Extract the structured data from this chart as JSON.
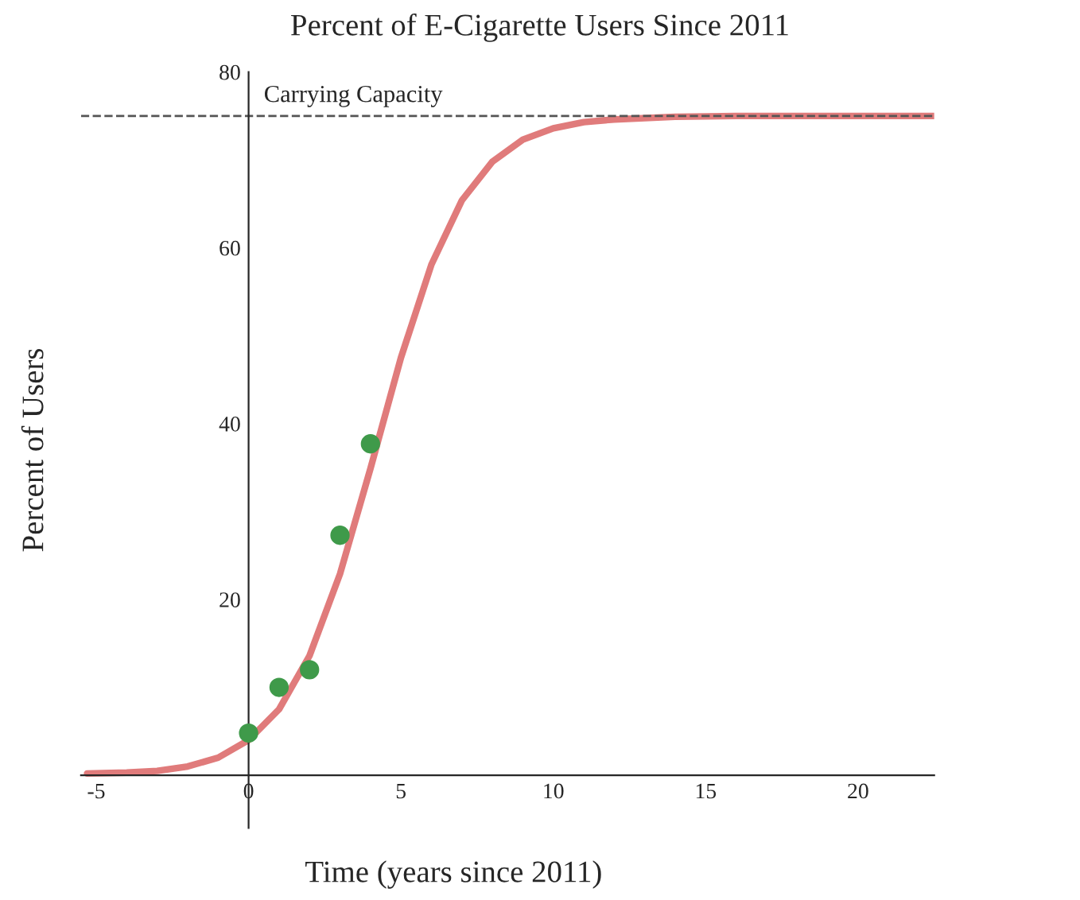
{
  "chart_data": {
    "type": "line",
    "title": "Percent of E-Cigarette Users Since 2011",
    "xlabel": "Time (years since 2011)",
    "ylabel": "Percent of Users",
    "xlim": [
      -5.5,
      22.5
    ],
    "ylim": [
      -6,
      80
    ],
    "xticks": [
      -5,
      0,
      5,
      10,
      15,
      20
    ],
    "yticks": [
      20,
      40,
      60,
      80
    ],
    "grid": false,
    "legend": false,
    "series": [
      {
        "color": "#e07b7b",
        "marker": "none",
        "x": [
          -5.3,
          -4,
          -3,
          -2,
          -1,
          0,
          1,
          2,
          3,
          4,
          5,
          6,
          7,
          8,
          9,
          10,
          11,
          12,
          14,
          16,
          22.5
        ],
        "values": [
          0.2,
          0.3,
          0.5,
          1,
          2,
          4,
          7.5,
          13.6,
          22.9,
          34.9,
          47.5,
          58.1,
          65.4,
          69.8,
          72.3,
          73.6,
          74.3,
          74.6,
          74.9,
          75,
          75
        ]
      },
      {
        "type": "scatter",
        "color": "#3f9a4a",
        "marker": "circle",
        "x": [
          0,
          1,
          2,
          3,
          4
        ],
        "values": [
          4.8,
          10,
          12,
          27.3,
          37.7
        ]
      }
    ],
    "ref_lines": [
      {
        "axis": "y",
        "value": 75,
        "label": "Carrying Capacity",
        "color": "#555555",
        "line_style": "dashed"
      }
    ]
  }
}
